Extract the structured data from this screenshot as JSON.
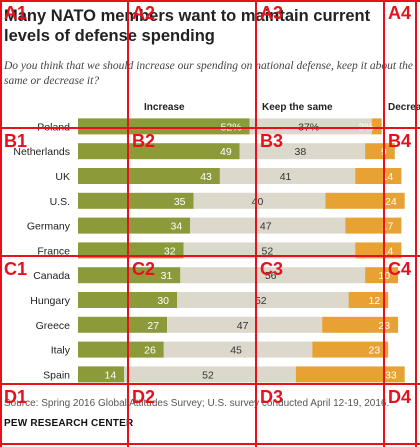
{
  "title": "Many NATO members want to maintain current levels of defense spending",
  "subtitle": "Do you think that we should increase our spending on national defense, keep it about the same or decrease it?",
  "source": "Source: Spring 2016 Global Attitudes Survey; U.S. survey conducted April 12-19, 2016.",
  "org": "PEW RESEARCH CENTER",
  "colors": {
    "increase": "#8c9a3a",
    "same": "#dcd8cc",
    "decrease": "#e8a234",
    "grid": "#e8101b"
  },
  "grid": {
    "columns": [
      "A",
      "B",
      "C",
      "D"
    ],
    "rows": [
      "1",
      "2",
      "3",
      "4"
    ],
    "labels": [
      "A1",
      "A2",
      "A3",
      "A4",
      "B1",
      "B2",
      "B3",
      "B4",
      "C1",
      "C2",
      "C3",
      "C4",
      "D1",
      "D2",
      "D3",
      "D4"
    ]
  },
  "chart_data": {
    "type": "bar",
    "stacked": true,
    "orientation": "horizontal",
    "title": "Many NATO members want to maintain current levels of defense spending",
    "categories": [
      "Poland",
      "Netherlands",
      "UK",
      "U.S.",
      "Germany",
      "France",
      "Canada",
      "Hungary",
      "Greece",
      "Italy",
      "Spain"
    ],
    "series": [
      {
        "name": "Increase",
        "values": [
          52,
          49,
          43,
          35,
          34,
          32,
          31,
          30,
          27,
          26,
          14
        ]
      },
      {
        "name": "Keep the same",
        "values": [
          37,
          38,
          41,
          40,
          47,
          52,
          56,
          52,
          47,
          45,
          52
        ]
      },
      {
        "name": "Decrease",
        "values": [
          3,
          9,
          14,
          24,
          17,
          14,
          10,
          12,
          23,
          23,
          33
        ]
      }
    ],
    "xlim": [
      0,
      100
    ],
    "legend": "top",
    "grid": false
  }
}
